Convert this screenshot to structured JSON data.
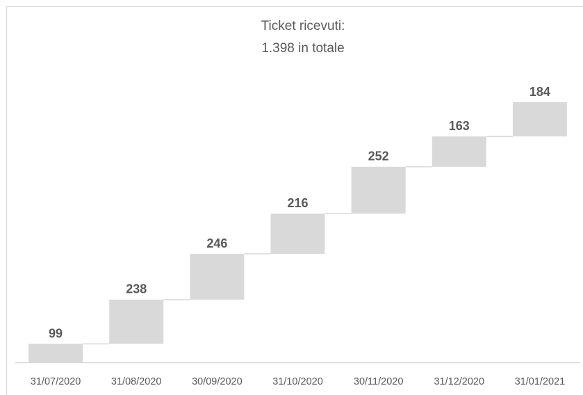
{
  "chart_data": {
    "type": "waterfall",
    "title": "Ticket ricevuti:",
    "subtitle": "1.398 in totale",
    "categories": [
      "31/07/2020",
      "31/08/2020",
      "30/09/2020",
      "31/10/2020",
      "30/11/2020",
      "31/12/2020",
      "31/01/2021"
    ],
    "values": [
      99,
      238,
      246,
      216,
      252,
      163,
      184
    ],
    "color": "#d9d9d9"
  }
}
